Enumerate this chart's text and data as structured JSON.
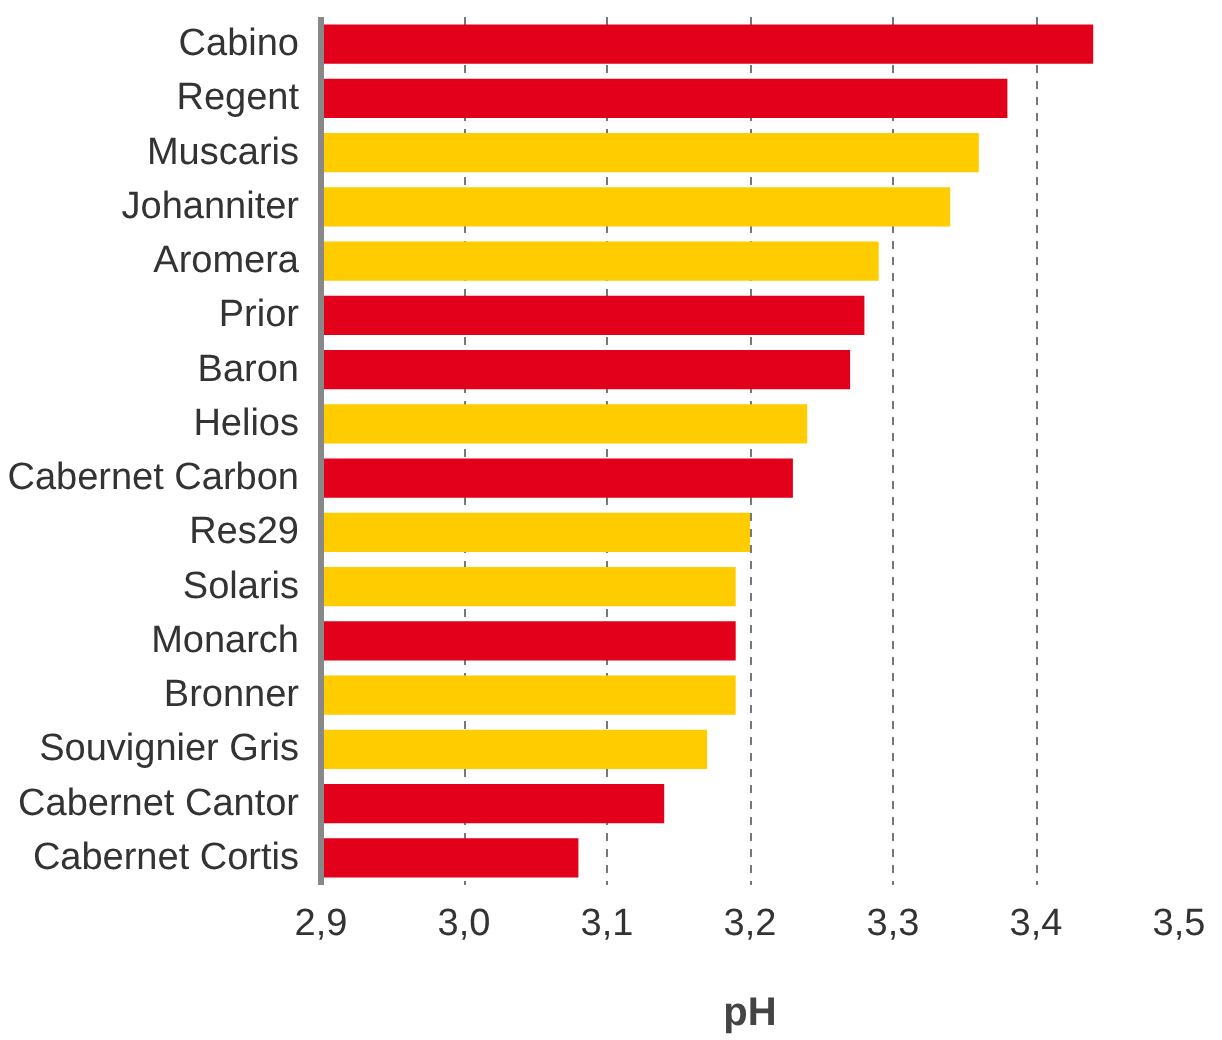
{
  "chart_data": {
    "type": "bar",
    "orientation": "horizontal",
    "xlabel": "pH",
    "categories": [
      "Cabino",
      "Regent",
      "Muscaris",
      "Johanniter",
      "Aromera",
      "Prior",
      "Baron",
      "Helios",
      "Cabernet Carbon",
      "Res29",
      "Solaris",
      "Monarch",
      "Bronner",
      "Souvignier Gris",
      "Cabernet Cantor",
      "Cabernet Cortis"
    ],
    "values": [
      3.44,
      3.38,
      3.36,
      3.34,
      3.29,
      3.28,
      3.27,
      3.24,
      3.23,
      3.2,
      3.19,
      3.19,
      3.19,
      3.17,
      3.14,
      3.08
    ],
    "colors": [
      "#e2001a",
      "#e2001a",
      "#ffcc00",
      "#ffcc00",
      "#ffcc00",
      "#e2001a",
      "#e2001a",
      "#ffcc00",
      "#e2001a",
      "#ffcc00",
      "#ffcc00",
      "#e2001a",
      "#ffcc00",
      "#ffcc00",
      "#e2001a",
      "#e2001a"
    ],
    "xlim": [
      2.9,
      3.5
    ],
    "xticks": [
      {
        "value": 2.9,
        "label": "2,9"
      },
      {
        "value": 3.0,
        "label": "3,0"
      },
      {
        "value": 3.1,
        "label": "3,1"
      },
      {
        "value": 3.2,
        "label": "3,2"
      },
      {
        "value": 3.3,
        "label": "3,3"
      },
      {
        "value": 3.4,
        "label": "3,4"
      },
      {
        "value": 3.5,
        "label": "3,5"
      }
    ],
    "grid": "x"
  }
}
